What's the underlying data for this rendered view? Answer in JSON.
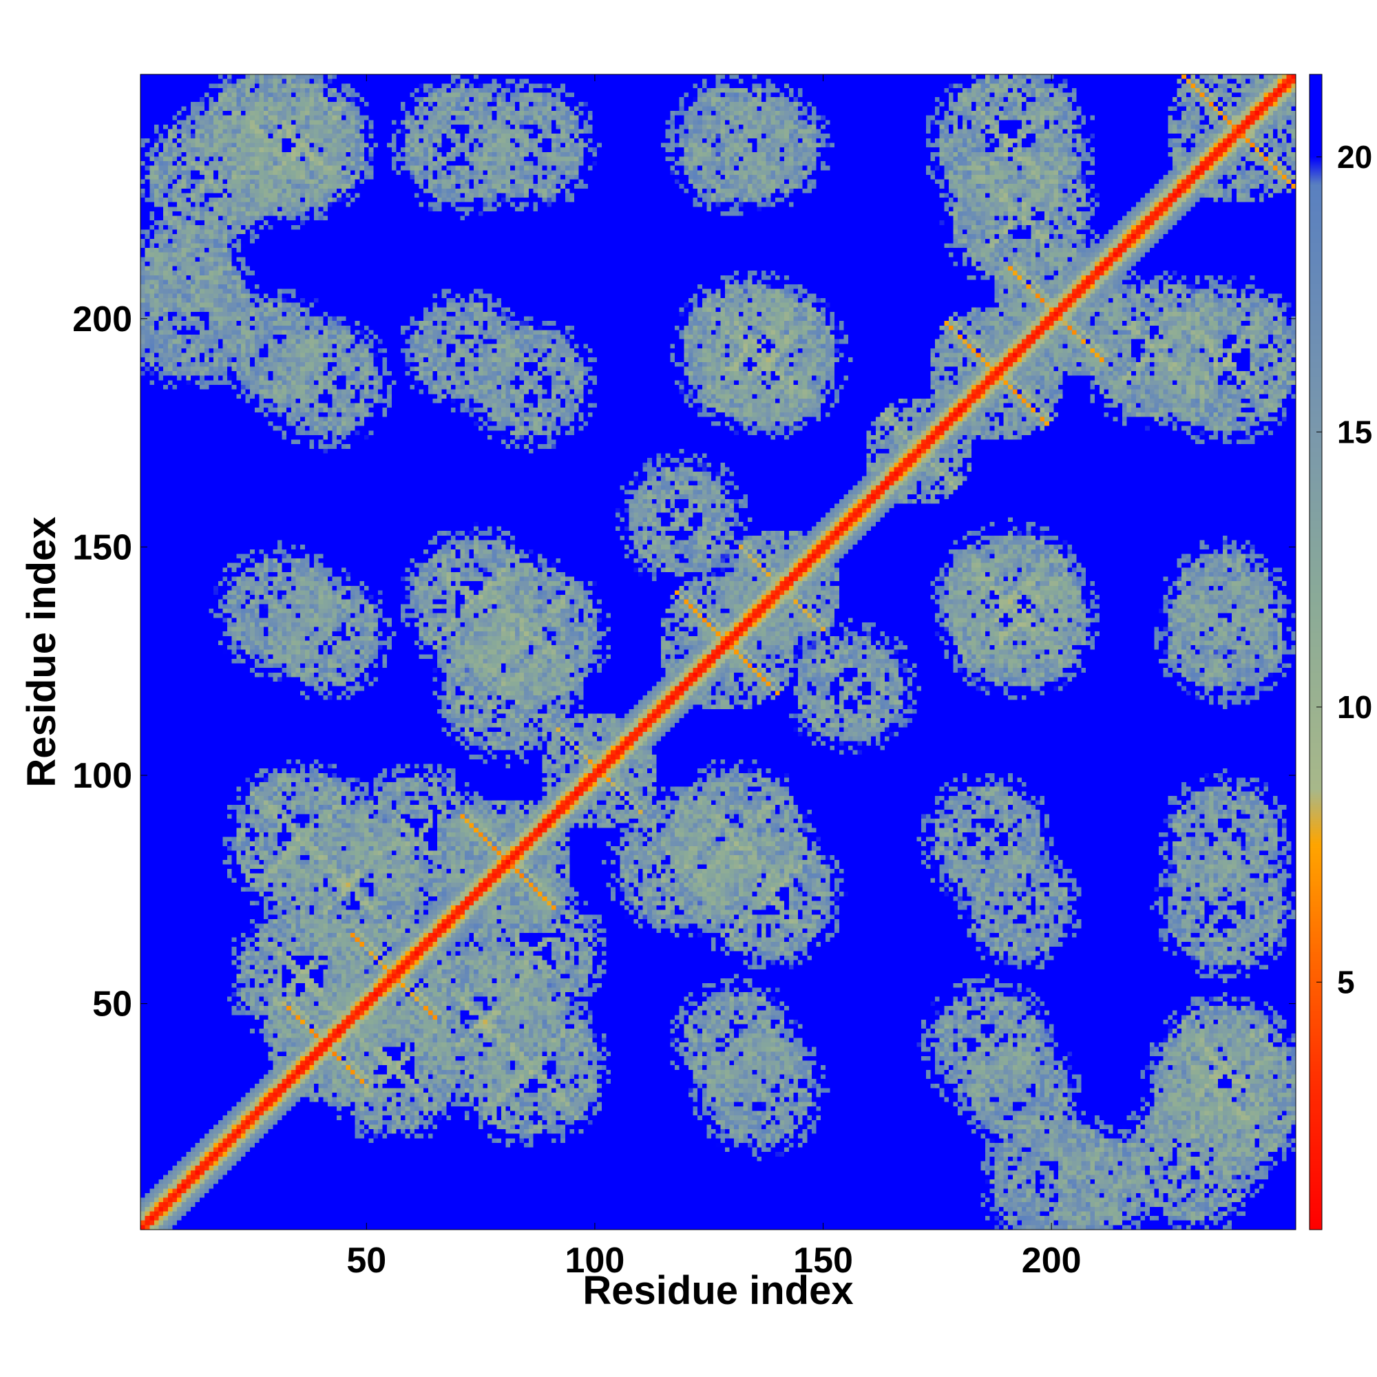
{
  "chart_data": {
    "type": "heatmap",
    "title": "",
    "xlabel": "Residue index",
    "ylabel": "Residue index",
    "n_residues": 253,
    "xlim": [
      1,
      253
    ],
    "ylim": [
      1,
      253
    ],
    "x_ticks": [
      50,
      100,
      150,
      200
    ],
    "y_ticks": [
      50,
      100,
      150,
      200
    ],
    "colorbar": {
      "ticks": [
        5,
        10,
        15,
        20
      ],
      "range": [
        0.5,
        21.5
      ],
      "stops": [
        {
          "value": 0.5,
          "color": "#ff0000"
        },
        {
          "value": 3.0,
          "color": "#ff2a00"
        },
        {
          "value": 5.5,
          "color": "#ff6a00"
        },
        {
          "value": 7.5,
          "color": "#ffa500"
        },
        {
          "value": 8.5,
          "color": "#a8b88a"
        },
        {
          "value": 12.0,
          "color": "#8aaa98"
        },
        {
          "value": 15.0,
          "color": "#7a98ac"
        },
        {
          "value": 19.5,
          "color": "#5a80c0"
        },
        {
          "value": 20.0,
          "color": "#0000ff"
        },
        {
          "value": 21.5,
          "color": "#0000ff"
        }
      ]
    },
    "background_value": 21,
    "diagonal_value": 1,
    "helix_cross_motifs": [
      {
        "cx": 40,
        "cy": 40,
        "arm": 9,
        "peak": 6
      },
      {
        "cx": 55,
        "cy": 55,
        "arm": 9,
        "peak": 6
      },
      {
        "cx": 80,
        "cy": 80,
        "arm": 10,
        "peak": 6
      },
      {
        "cx": 100,
        "cy": 100,
        "arm": 9,
        "peak": 7
      },
      {
        "cx": 128,
        "cy": 128,
        "arm": 11,
        "peak": 6
      },
      {
        "cx": 140,
        "cy": 140,
        "arm": 9,
        "peak": 7
      },
      {
        "cx": 170,
        "cy": 170,
        "arm": 8,
        "peak": 8
      },
      {
        "cx": 187,
        "cy": 187,
        "arm": 11,
        "peak": 6
      },
      {
        "cx": 200,
        "cy": 200,
        "arm": 10,
        "peak": 6
      },
      {
        "cx": 240,
        "cy": 240,
        "arm": 12,
        "peak": 6
      }
    ],
    "contact_clusters": [
      {
        "cx": 28,
        "cy": 237,
        "r": 16,
        "peak": 8
      },
      {
        "cx": 70,
        "cy": 237,
        "r": 13,
        "peak": 11
      },
      {
        "cx": 130,
        "cy": 237,
        "r": 13,
        "peak": 11
      },
      {
        "cx": 190,
        "cy": 237,
        "r": 16,
        "peak": 8
      },
      {
        "cx": 10,
        "cy": 210,
        "r": 10,
        "peak": 12
      },
      {
        "cx": 30,
        "cy": 192,
        "r": 11,
        "peak": 12
      },
      {
        "cx": 70,
        "cy": 192,
        "r": 11,
        "peak": 11
      },
      {
        "cx": 133,
        "cy": 192,
        "r": 15,
        "peak": 8
      },
      {
        "cx": 222,
        "cy": 192,
        "r": 15,
        "peak": 8
      },
      {
        "cx": 30,
        "cy": 135,
        "r": 12,
        "peak": 11
      },
      {
        "cx": 73,
        "cy": 137,
        "r": 14,
        "peak": 8
      },
      {
        "cx": 80,
        "cy": 118,
        "r": 14,
        "peak": 9
      },
      {
        "cx": 118,
        "cy": 155,
        "r": 12,
        "peak": 10
      },
      {
        "cx": 190,
        "cy": 137,
        "r": 15,
        "peak": 8
      },
      {
        "cx": 237,
        "cy": 137,
        "r": 11,
        "peak": 11
      },
      {
        "cx": 35,
        "cy": 85,
        "r": 15,
        "peak": 8
      },
      {
        "cx": 60,
        "cy": 85,
        "r": 14,
        "peak": 9
      },
      {
        "cx": 130,
        "cy": 85,
        "r": 15,
        "peak": 8
      },
      {
        "cx": 185,
        "cy": 85,
        "r": 12,
        "peak": 11
      },
      {
        "cx": 237,
        "cy": 85,
        "r": 12,
        "peak": 11
      },
      {
        "cx": 35,
        "cy": 55,
        "r": 14,
        "peak": 8
      },
      {
        "cx": 75,
        "cy": 45,
        "r": 16,
        "peak": 8
      },
      {
        "cx": 130,
        "cy": 40,
        "r": 12,
        "peak": 11
      },
      {
        "cx": 185,
        "cy": 40,
        "r": 12,
        "peak": 11
      },
      {
        "cx": 237,
        "cy": 35,
        "r": 14,
        "peak": 8
      },
      {
        "cx": 230,
        "cy": 15,
        "r": 14,
        "peak": 9
      },
      {
        "cx": 200,
        "cy": 10,
        "r": 14,
        "peak": 12
      }
    ]
  }
}
